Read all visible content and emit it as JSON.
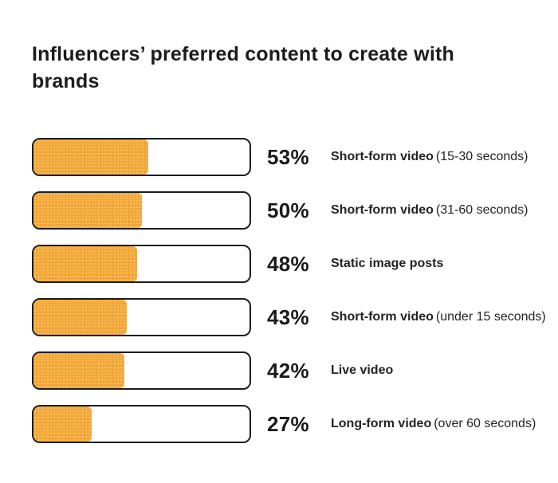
{
  "title": "Influencers’ preferred content to create with brands",
  "colors": {
    "bar_fill": "#f3a93c",
    "bar_border": "#1d1d1f",
    "text": "#1c1c1e",
    "background": "#ffffff"
  },
  "chart_data": {
    "type": "bar",
    "orientation": "horizontal",
    "title": "Influencers’ preferred content to create with brands",
    "unit": "%",
    "xlim": [
      0,
      100
    ],
    "grid": false,
    "legend": false,
    "categories": [
      "Short-form video (15-30 seconds)",
      "Short-form video (31-60 seconds)",
      "Static image posts",
      "Short-form video (under 15 seconds)",
      "Live video",
      "Long-form video (over 60 seconds)"
    ],
    "values": [
      53,
      50,
      48,
      43,
      42,
      27
    ]
  },
  "rows": [
    {
      "percent": "53%",
      "label": "Short-form video",
      "detail": "(15-30 seconds)"
    },
    {
      "percent": "50%",
      "label": "Short-form video",
      "detail": "(31-60 seconds)"
    },
    {
      "percent": "48%",
      "label": "Static image posts",
      "detail": ""
    },
    {
      "percent": "43%",
      "label": "Short-form video",
      "detail": "(under 15 seconds)"
    },
    {
      "percent": "42%",
      "label": "Live video",
      "detail": ""
    },
    {
      "percent": "27%",
      "label": "Long-form video",
      "detail": "(over 60 seconds)"
    }
  ]
}
